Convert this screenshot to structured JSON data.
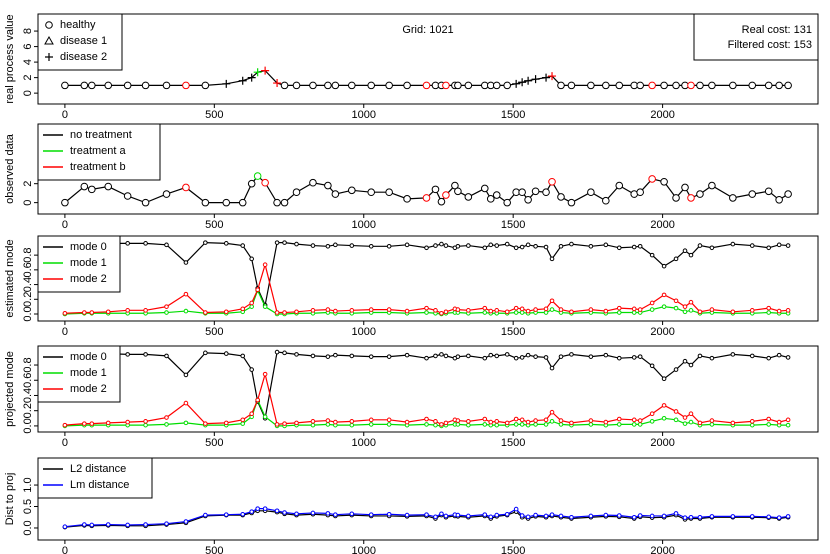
{
  "chart_data": [
    {
      "type": "line",
      "ylabel": "real process value",
      "annotation": "Grid: 1021",
      "cost_box": [
        "Real cost: 131",
        "Filtered cost: 153"
      ],
      "xlim": [
        -90,
        2520
      ],
      "xticks": [
        0,
        500,
        1000,
        1500,
        2000
      ],
      "ylim": [
        -1.4,
        10.2
      ],
      "yticks": [
        0,
        2,
        4,
        6,
        8
      ],
      "legend": [
        {
          "name": "healthy",
          "shape": "circle"
        },
        {
          "name": "disease 1",
          "shape": "triangle"
        },
        {
          "name": "disease 2",
          "shape": "plus"
        }
      ],
      "treatment_colors": [
        "#000000",
        "#00dd00",
        "#ff0000"
      ],
      "x": [
        0,
        65,
        90,
        145,
        210,
        270,
        340,
        405,
        470,
        540,
        595,
        625,
        645,
        670,
        710,
        735,
        775,
        830,
        880,
        905,
        960,
        1025,
        1085,
        1145,
        1210,
        1240,
        1260,
        1275,
        1305,
        1315,
        1350,
        1405,
        1425,
        1445,
        1480,
        1510,
        1530,
        1550,
        1575,
        1610,
        1630,
        1660,
        1695,
        1760,
        1810,
        1855,
        1905,
        1925,
        1965,
        2005,
        2045,
        2075,
        2095,
        2125,
        2165,
        2235,
        2300,
        2355,
        2390,
        2420
      ],
      "values": [
        1,
        1,
        1,
        1,
        1,
        1,
        1,
        1,
        1,
        1.2,
        1.6,
        2.0,
        2.7,
        2.9,
        1.3,
        1,
        1,
        1,
        1,
        1,
        1,
        1,
        1,
        1,
        1,
        1,
        1,
        1,
        1,
        1,
        1,
        1,
        1,
        1,
        1,
        1.2,
        1.4,
        1.6,
        1.8,
        2.0,
        2.2,
        1,
        1,
        1,
        1,
        1,
        1,
        1,
        1,
        1,
        1,
        1,
        1,
        1,
        1,
        1,
        1,
        1,
        1,
        1
      ],
      "states": [
        0,
        0,
        0,
        0,
        0,
        0,
        0,
        0,
        0,
        2,
        2,
        2,
        2,
        2,
        2,
        0,
        0,
        0,
        0,
        0,
        0,
        0,
        0,
        0,
        0,
        0,
        0,
        0,
        0,
        0,
        0,
        0,
        0,
        0,
        0,
        2,
        2,
        2,
        2,
        2,
        2,
        0,
        0,
        0,
        0,
        0,
        0,
        0,
        0,
        0,
        0,
        0,
        0,
        0,
        0,
        0,
        0,
        0,
        0,
        0
      ],
      "treatments": [
        0,
        0,
        0,
        0,
        0,
        0,
        0,
        2,
        0,
        0,
        0,
        0,
        1,
        2,
        2,
        0,
        0,
        0,
        0,
        0,
        0,
        0,
        0,
        0,
        2,
        0,
        0,
        2,
        0,
        0,
        0,
        0,
        0,
        0,
        0,
        0,
        0,
        0,
        0,
        0,
        2,
        0,
        0,
        0,
        0,
        0,
        0,
        0,
        2,
        0,
        0,
        0,
        2,
        0,
        0,
        0,
        0,
        0,
        0,
        0
      ]
    },
    {
      "type": "line",
      "ylabel": "observed data",
      "xlim": [
        -90,
        2520
      ],
      "xticks": [
        0,
        500,
        1000,
        1500,
        2000
      ],
      "ylim": [
        -1.2,
        8.3
      ],
      "yticks": [
        0,
        2
      ],
      "legend": [
        {
          "name": "no treatment",
          "color": "#000000"
        },
        {
          "name": "treatment a",
          "color": "#00dd00"
        },
        {
          "name": "treatment b",
          "color": "#ff0000"
        }
      ],
      "x": [
        0,
        65,
        90,
        145,
        210,
        270,
        340,
        405,
        470,
        540,
        595,
        625,
        645,
        670,
        710,
        735,
        775,
        830,
        880,
        905,
        960,
        1025,
        1085,
        1145,
        1210,
        1240,
        1260,
        1275,
        1305,
        1315,
        1350,
        1405,
        1425,
        1445,
        1480,
        1510,
        1530,
        1550,
        1575,
        1610,
        1630,
        1660,
        1695,
        1760,
        1810,
        1855,
        1905,
        1925,
        1965,
        2005,
        2045,
        2075,
        2095,
        2125,
        2165,
        2235,
        2300,
        2355,
        2390,
        2420
      ],
      "values": [
        0,
        1.7,
        1.4,
        1.7,
        0.7,
        0,
        0.9,
        1.6,
        0,
        0,
        0,
        2.0,
        2.8,
        2.1,
        0,
        0,
        1.1,
        2.1,
        1.8,
        0.9,
        1.3,
        1.1,
        1.1,
        0.4,
        0.5,
        1.4,
        0.1,
        0.8,
        1.8,
        1.2,
        0.6,
        1.5,
        0.4,
        0.8,
        0,
        1.1,
        1.1,
        0.3,
        1.2,
        1.1,
        2.2,
        0.6,
        0,
        1.1,
        0.2,
        1.8,
        0.9,
        1.1,
        2.5,
        2.2,
        0.5,
        1.6,
        0.5,
        0.9,
        1.8,
        0.5,
        0.9,
        1.2,
        0.3,
        0.9
      ],
      "treatments": [
        0,
        0,
        0,
        0,
        0,
        0,
        0,
        2,
        0,
        0,
        0,
        0,
        1,
        2,
        0,
        0,
        0,
        0,
        0,
        0,
        0,
        0,
        0,
        0,
        2,
        0,
        0,
        2,
        0,
        0,
        0,
        0,
        0,
        0,
        0,
        0,
        0,
        0,
        0,
        0,
        2,
        0,
        0,
        0,
        0,
        0,
        0,
        0,
        2,
        0,
        0,
        0,
        2,
        0,
        0,
        0,
        0,
        0,
        0,
        0
      ]
    },
    {
      "type": "line",
      "ylabel": "estimated mode",
      "xlim": [
        -90,
        2520
      ],
      "xticks": [
        0,
        500,
        1000,
        1500,
        2000
      ],
      "ylim": [
        -0.095,
        1.06
      ],
      "yticks": [
        {
          "value": 0,
          "label": "0.0"
        },
        0.2,
        0.4,
        0.6,
        0.8
      ],
      "x": [
        0,
        65,
        90,
        145,
        210,
        270,
        340,
        405,
        470,
        540,
        595,
        625,
        645,
        670,
        710,
        735,
        775,
        830,
        880,
        905,
        960,
        1025,
        1085,
        1145,
        1210,
        1240,
        1260,
        1275,
        1305,
        1315,
        1350,
        1405,
        1425,
        1445,
        1480,
        1510,
        1530,
        1550,
        1575,
        1610,
        1630,
        1660,
        1695,
        1760,
        1810,
        1855,
        1905,
        1925,
        1965,
        2005,
        2045,
        2075,
        2095,
        2125,
        2165,
        2235,
        2300,
        2355,
        2390,
        2420
      ],
      "series": [
        {
          "name": "mode 0",
          "color": "#000000",
          "values": [
            0.97,
            0.96,
            0.96,
            0.96,
            0.96,
            0.96,
            0.94,
            0.7,
            0.97,
            0.96,
            0.93,
            0.75,
            0.35,
            0.12,
            0.97,
            0.97,
            0.95,
            0.93,
            0.92,
            0.94,
            0.93,
            0.92,
            0.92,
            0.94,
            0.9,
            0.93,
            0.95,
            0.93,
            0.9,
            0.92,
            0.93,
            0.9,
            0.94,
            0.93,
            0.95,
            0.9,
            0.91,
            0.94,
            0.92,
            0.91,
            0.75,
            0.92,
            0.95,
            0.92,
            0.94,
            0.9,
            0.91,
            0.92,
            0.8,
            0.65,
            0.75,
            0.86,
            0.8,
            0.93,
            0.9,
            0.95,
            0.93,
            0.9,
            0.94,
            0.93
          ]
        },
        {
          "name": "mode 1",
          "color": "#00dd00",
          "values": [
            0,
            0.01,
            0.01,
            0.01,
            0.01,
            0.01,
            0.02,
            0.04,
            0.01,
            0.01,
            0.03,
            0.1,
            0.32,
            0.1,
            0,
            0,
            0.01,
            0.01,
            0.02,
            0.01,
            0.01,
            0.02,
            0.02,
            0.01,
            0.02,
            0.01,
            0,
            0.01,
            0.02,
            0.02,
            0.01,
            0.02,
            0.01,
            0.01,
            0.01,
            0.02,
            0.02,
            0.01,
            0.02,
            0.02,
            0.06,
            0.02,
            0.01,
            0.02,
            0.01,
            0.02,
            0.02,
            0.02,
            0.06,
            0.1,
            0.08,
            0.03,
            0.05,
            0.01,
            0.02,
            0.01,
            0.01,
            0.02,
            0.01,
            0.01
          ]
        },
        {
          "name": "mode 2",
          "color": "#ff0000",
          "values": [
            0.01,
            0.02,
            0.02,
            0.03,
            0.05,
            0.05,
            0.1,
            0.27,
            0.02,
            0.03,
            0.07,
            0.15,
            0.33,
            0.67,
            0.02,
            0.02,
            0.03,
            0.05,
            0.06,
            0.04,
            0.05,
            0.06,
            0.06,
            0.04,
            0.08,
            0.05,
            0.01,
            0.03,
            0.07,
            0.06,
            0.05,
            0.08,
            0.04,
            0.05,
            0.03,
            0.08,
            0.07,
            0.04,
            0.06,
            0.07,
            0.18,
            0.06,
            0.03,
            0.06,
            0.04,
            0.08,
            0.07,
            0.06,
            0.15,
            0.26,
            0.18,
            0.1,
            0.16,
            0.03,
            0.06,
            0.03,
            0.05,
            0.08,
            0.04,
            0.05
          ]
        }
      ]
    },
    {
      "type": "line",
      "ylabel": "projected mode",
      "xlim": [
        -90,
        2520
      ],
      "xticks": [
        0,
        500,
        1000,
        1500,
        2000
      ],
      "ylim": [
        -0.08,
        1.05
      ],
      "yticks": [
        {
          "value": 0,
          "label": "0.0"
        },
        0.2,
        0.4,
        0.6,
        0.8
      ],
      "x": [
        0,
        65,
        90,
        145,
        210,
        270,
        340,
        405,
        470,
        540,
        595,
        625,
        645,
        670,
        710,
        735,
        775,
        830,
        880,
        905,
        960,
        1025,
        1085,
        1145,
        1210,
        1240,
        1260,
        1275,
        1305,
        1315,
        1350,
        1405,
        1425,
        1445,
        1480,
        1510,
        1530,
        1550,
        1575,
        1610,
        1630,
        1660,
        1695,
        1760,
        1810,
        1855,
        1905,
        1925,
        1965,
        2005,
        2045,
        2075,
        2095,
        2125,
        2165,
        2235,
        2300,
        2355,
        2390,
        2420
      ],
      "series": [
        {
          "name": "mode 0",
          "color": "#000000",
          "values": [
            0.97,
            0.95,
            0.95,
            0.95,
            0.94,
            0.94,
            0.92,
            0.67,
            0.96,
            0.95,
            0.92,
            0.74,
            0.32,
            0.1,
            0.97,
            0.96,
            0.94,
            0.92,
            0.91,
            0.93,
            0.92,
            0.91,
            0.91,
            0.93,
            0.89,
            0.92,
            0.94,
            0.92,
            0.89,
            0.91,
            0.92,
            0.89,
            0.93,
            0.92,
            0.94,
            0.89,
            0.9,
            0.93,
            0.91,
            0.9,
            0.76,
            0.91,
            0.94,
            0.91,
            0.93,
            0.89,
            0.9,
            0.91,
            0.79,
            0.62,
            0.74,
            0.85,
            0.8,
            0.92,
            0.89,
            0.94,
            0.92,
            0.89,
            0.93,
            0.9
          ]
        },
        {
          "name": "mode 1",
          "color": "#00dd00",
          "values": [
            0,
            0.01,
            0.01,
            0.01,
            0.01,
            0.01,
            0.02,
            0.04,
            0.01,
            0.01,
            0.03,
            0.12,
            0.34,
            0.12,
            0,
            0,
            0.01,
            0.01,
            0.02,
            0.01,
            0.01,
            0.02,
            0.02,
            0.01,
            0.02,
            0.01,
            0,
            0.01,
            0.02,
            0.02,
            0.01,
            0.02,
            0.01,
            0.01,
            0.01,
            0.02,
            0.02,
            0.01,
            0.02,
            0.02,
            0.06,
            0.02,
            0.01,
            0.02,
            0.01,
            0.02,
            0.02,
            0.02,
            0.06,
            0.1,
            0.08,
            0.03,
            0.05,
            0.01,
            0.02,
            0.01,
            0.01,
            0.02,
            0.01,
            0.01
          ]
        },
        {
          "name": "mode 2",
          "color": "#ff0000",
          "values": [
            0.01,
            0.03,
            0.03,
            0.04,
            0.05,
            0.06,
            0.11,
            0.3,
            0.03,
            0.04,
            0.08,
            0.16,
            0.34,
            0.68,
            0.02,
            0.03,
            0.04,
            0.06,
            0.07,
            0.05,
            0.06,
            0.08,
            0.08,
            0.05,
            0.09,
            0.06,
            0.02,
            0.04,
            0.08,
            0.07,
            0.06,
            0.09,
            0.05,
            0.06,
            0.04,
            0.09,
            0.08,
            0.05,
            0.07,
            0.08,
            0.18,
            0.07,
            0.04,
            0.07,
            0.05,
            0.09,
            0.08,
            0.07,
            0.16,
            0.27,
            0.19,
            0.11,
            0.16,
            0.04,
            0.07,
            0.04,
            0.06,
            0.09,
            0.05,
            0.08
          ]
        }
      ]
    },
    {
      "type": "line",
      "ylabel": "Dist to proj",
      "xlim": [
        -90,
        2520
      ],
      "xticks": [
        0,
        500,
        1000,
        1500,
        2000
      ],
      "ylim": [
        -0.28,
        1.63
      ],
      "yticks": [
        {
          "value": 0,
          "label": "0.0"
        },
        0.5,
        {
          "value": 1,
          "label": "1.0"
        }
      ],
      "x": [
        0,
        65,
        90,
        145,
        210,
        270,
        340,
        405,
        470,
        540,
        595,
        625,
        645,
        670,
        710,
        735,
        775,
        830,
        880,
        905,
        960,
        1025,
        1085,
        1145,
        1210,
        1240,
        1260,
        1275,
        1305,
        1315,
        1350,
        1405,
        1425,
        1445,
        1480,
        1510,
        1530,
        1550,
        1575,
        1610,
        1630,
        1660,
        1695,
        1760,
        1810,
        1855,
        1905,
        1925,
        1965,
        2005,
        2045,
        2075,
        2095,
        2125,
        2165,
        2235,
        2300,
        2355,
        2390,
        2420
      ],
      "series": [
        {
          "name": "L2 distance",
          "color": "#000000",
          "values": [
            0.02,
            0.06,
            0.05,
            0.06,
            0.05,
            0.05,
            0.08,
            0.12,
            0.28,
            0.3,
            0.3,
            0.35,
            0.4,
            0.4,
            0.37,
            0.33,
            0.3,
            0.32,
            0.3,
            0.28,
            0.3,
            0.28,
            0.28,
            0.27,
            0.28,
            0.22,
            0.3,
            0.25,
            0.28,
            0.27,
            0.25,
            0.28,
            0.22,
            0.27,
            0.3,
            0.38,
            0.25,
            0.22,
            0.27,
            0.25,
            0.28,
            0.25,
            0.22,
            0.25,
            0.27,
            0.26,
            0.22,
            0.26,
            0.24,
            0.25,
            0.3,
            0.2,
            0.22,
            0.22,
            0.25,
            0.25,
            0.25,
            0.24,
            0.22,
            0.25
          ]
        },
        {
          "name": "Lm distance",
          "color": "#0000ff",
          "values": [
            0.03,
            0.08,
            0.07,
            0.08,
            0.07,
            0.08,
            0.1,
            0.15,
            0.3,
            0.31,
            0.32,
            0.38,
            0.45,
            0.45,
            0.4,
            0.36,
            0.33,
            0.35,
            0.34,
            0.31,
            0.33,
            0.31,
            0.32,
            0.3,
            0.31,
            0.26,
            0.33,
            0.28,
            0.31,
            0.3,
            0.28,
            0.31,
            0.26,
            0.3,
            0.32,
            0.44,
            0.29,
            0.26,
            0.3,
            0.28,
            0.31,
            0.28,
            0.25,
            0.28,
            0.3,
            0.29,
            0.25,
            0.29,
            0.28,
            0.28,
            0.34,
            0.24,
            0.25,
            0.25,
            0.27,
            0.27,
            0.27,
            0.26,
            0.24,
            0.27
          ]
        }
      ]
    }
  ]
}
